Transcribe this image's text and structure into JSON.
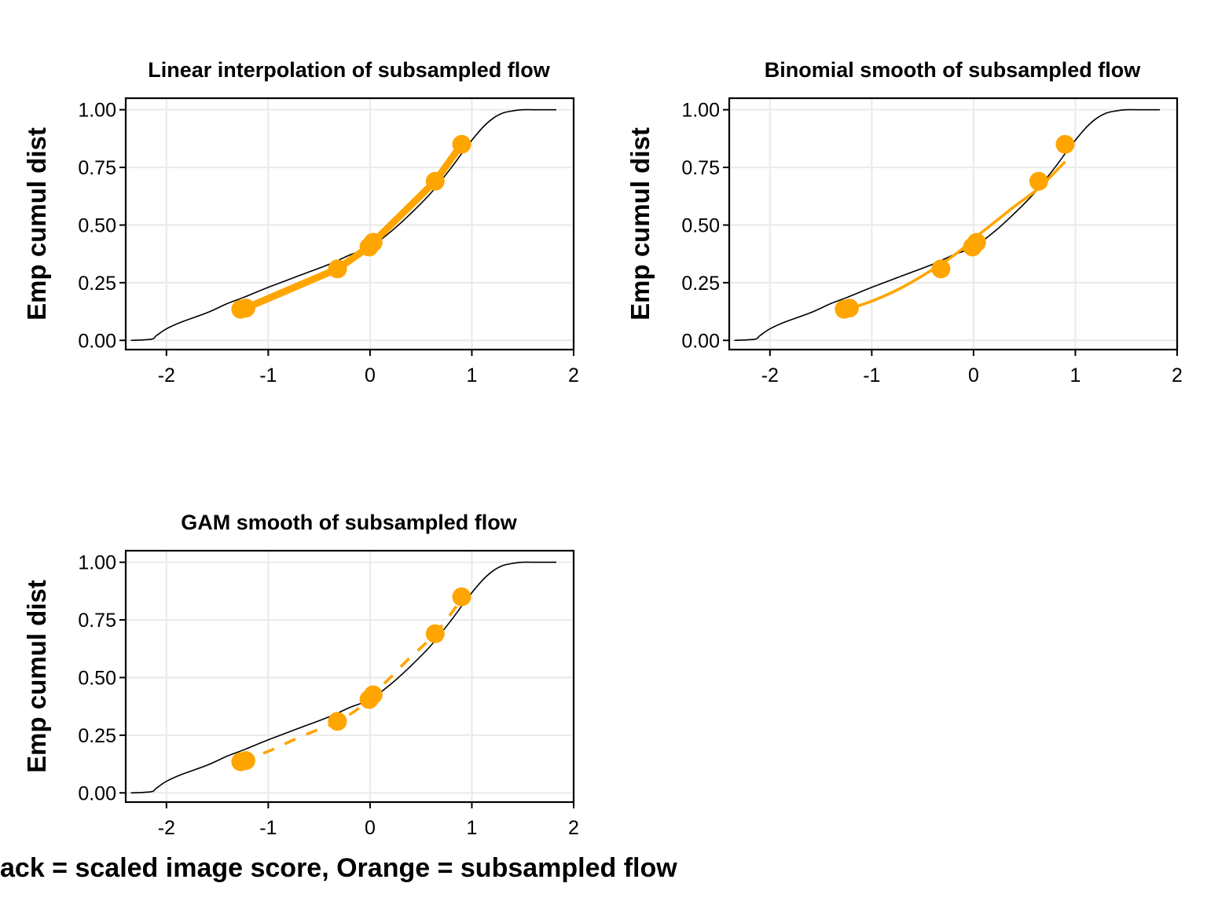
{
  "caption": "ack = scaled image score, Orange = subsampled flow",
  "colors": {
    "reference_line": "#000000",
    "subsampled": "#FFA500",
    "grid": "#EBEBEB",
    "panel_border": "#000000"
  },
  "chart_data": [
    {
      "type": "line",
      "title": "Linear interpolation of subsampled flow",
      "xlabel": "",
      "ylabel": "Emp cumul dist",
      "xlim": [
        -2.4,
        2.0
      ],
      "ylim": [
        -0.04,
        1.05
      ],
      "xticks": [
        -2,
        -1,
        0,
        1,
        2
      ],
      "yticks": [
        0.0,
        0.25,
        0.5,
        0.75,
        1.0
      ],
      "ytick_labels": [
        "0.00",
        "0.25",
        "0.50",
        "0.75",
        "1.00"
      ],
      "grid": true,
      "series": [
        {
          "style": "thin-solid",
          "color": "#000000",
          "x": [
            -2.35,
            -2.15,
            -2.1,
            -2.0,
            -1.85,
            -1.6,
            -1.4,
            -1.25,
            -1.0,
            -0.7,
            -0.4,
            -0.2,
            0.0,
            0.2,
            0.4,
            0.6,
            0.8,
            0.95,
            1.1,
            1.2,
            1.3,
            1.4,
            1.5,
            1.6,
            1.83
          ],
          "y": [
            0.0,
            0.005,
            0.02,
            0.05,
            0.08,
            0.12,
            0.16,
            0.185,
            0.23,
            0.28,
            0.33,
            0.37,
            0.405,
            0.47,
            0.55,
            0.64,
            0.75,
            0.84,
            0.92,
            0.96,
            0.985,
            0.995,
            1.0,
            1.0,
            1.0
          ]
        },
        {
          "style": "thick-solid",
          "color": "#FFA500",
          "x": [
            -1.27,
            -1.22,
            -0.32,
            -0.01,
            0.03,
            0.64,
            0.9
          ],
          "y": [
            0.135,
            0.14,
            0.31,
            0.405,
            0.425,
            0.69,
            0.85
          ]
        },
        {
          "style": "points",
          "color": "#FFA500",
          "x": [
            -1.27,
            -1.22,
            -0.32,
            -0.01,
            0.03,
            0.64,
            0.9
          ],
          "y": [
            0.135,
            0.14,
            0.31,
            0.405,
            0.425,
            0.69,
            0.85
          ]
        }
      ]
    },
    {
      "type": "line",
      "title": "Binomial smooth of subsampled flow",
      "xlabel": "",
      "ylabel": "Emp cumul dist",
      "xlim": [
        -2.4,
        2.0
      ],
      "ylim": [
        -0.04,
        1.05
      ],
      "xticks": [
        -2,
        -1,
        0,
        1,
        2
      ],
      "yticks": [
        0.0,
        0.25,
        0.5,
        0.75,
        1.0
      ],
      "ytick_labels": [
        "0.00",
        "0.25",
        "0.50",
        "0.75",
        "1.00"
      ],
      "grid": true,
      "series": [
        {
          "style": "thin-solid",
          "color": "#000000",
          "x": [
            -2.35,
            -2.15,
            -2.1,
            -2.0,
            -1.85,
            -1.6,
            -1.4,
            -1.25,
            -1.0,
            -0.7,
            -0.4,
            -0.2,
            0.0,
            0.2,
            0.4,
            0.6,
            0.8,
            0.95,
            1.1,
            1.2,
            1.3,
            1.4,
            1.5,
            1.6,
            1.83
          ],
          "y": [
            0.0,
            0.005,
            0.02,
            0.05,
            0.08,
            0.12,
            0.16,
            0.185,
            0.23,
            0.28,
            0.33,
            0.37,
            0.405,
            0.47,
            0.55,
            0.64,
            0.75,
            0.84,
            0.92,
            0.96,
            0.985,
            0.995,
            1.0,
            1.0,
            1.0
          ]
        },
        {
          "style": "solid",
          "color": "#FFA500",
          "x": [
            -1.27,
            -1.0,
            -0.7,
            -0.32,
            -0.1,
            0.0,
            0.2,
            0.4,
            0.64,
            0.9
          ],
          "y": [
            0.13,
            0.17,
            0.23,
            0.33,
            0.4,
            0.44,
            0.51,
            0.58,
            0.66,
            0.775
          ]
        },
        {
          "style": "points",
          "color": "#FFA500",
          "x": [
            -1.27,
            -1.22,
            -0.32,
            -0.01,
            0.03,
            0.64,
            0.9
          ],
          "y": [
            0.135,
            0.14,
            0.31,
            0.405,
            0.425,
            0.69,
            0.85
          ]
        }
      ]
    },
    {
      "type": "line",
      "title": "GAM smooth of subsampled flow",
      "xlabel": "",
      "ylabel": "Emp cumul dist",
      "xlim": [
        -2.4,
        2.0
      ],
      "ylim": [
        -0.04,
        1.05
      ],
      "xticks": [
        -2,
        -1,
        0,
        1,
        2
      ],
      "yticks": [
        0.0,
        0.25,
        0.5,
        0.75,
        1.0
      ],
      "ytick_labels": [
        "0.00",
        "0.25",
        "0.50",
        "0.75",
        "1.00"
      ],
      "grid": true,
      "series": [
        {
          "style": "thin-solid",
          "color": "#000000",
          "x": [
            -2.35,
            -2.15,
            -2.1,
            -2.0,
            -1.85,
            -1.6,
            -1.4,
            -1.25,
            -1.0,
            -0.7,
            -0.4,
            -0.2,
            0.0,
            0.2,
            0.4,
            0.6,
            0.8,
            0.95,
            1.1,
            1.2,
            1.3,
            1.4,
            1.5,
            1.6,
            1.83
          ],
          "y": [
            0.0,
            0.005,
            0.02,
            0.05,
            0.08,
            0.12,
            0.16,
            0.185,
            0.23,
            0.28,
            0.33,
            0.37,
            0.405,
            0.47,
            0.55,
            0.64,
            0.75,
            0.84,
            0.92,
            0.96,
            0.985,
            0.995,
            1.0,
            1.0,
            1.0
          ]
        },
        {
          "style": "dashed",
          "color": "#FFA500",
          "x": [
            -1.27,
            -1.0,
            -0.7,
            -0.32,
            -0.1,
            0.0,
            0.2,
            0.4,
            0.64,
            0.9
          ],
          "y": [
            0.14,
            0.18,
            0.24,
            0.31,
            0.37,
            0.415,
            0.5,
            0.59,
            0.69,
            0.84
          ]
        },
        {
          "style": "points",
          "color": "#FFA500",
          "x": [
            -1.27,
            -1.22,
            -0.32,
            -0.01,
            0.03,
            0.64,
            0.9
          ],
          "y": [
            0.135,
            0.14,
            0.31,
            0.405,
            0.425,
            0.69,
            0.85
          ]
        }
      ]
    }
  ]
}
